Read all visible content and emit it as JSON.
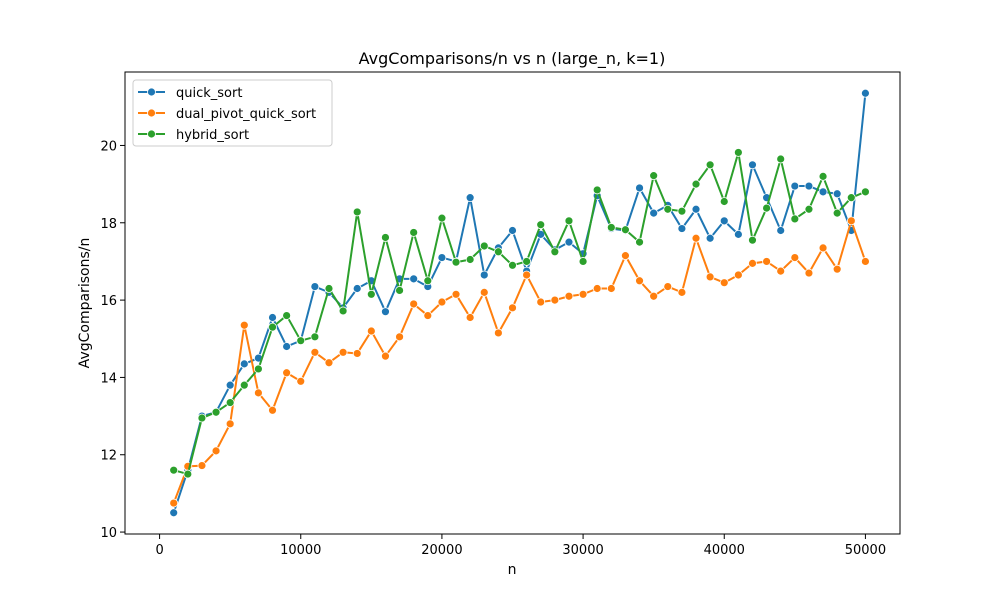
{
  "chart_data": {
    "type": "line",
    "title": "AvgComparisons/n vs n (large_n, k=1)",
    "xlabel": "n",
    "ylabel": "AvgComparisons/n",
    "xlim": [
      -2450,
      52450
    ],
    "ylim": [
      9.95,
      21.9
    ],
    "xticks": [
      0,
      10000,
      20000,
      30000,
      40000,
      50000
    ],
    "yticks": [
      10,
      12,
      14,
      16,
      18,
      20
    ],
    "grid": false,
    "legend_position": "top-left",
    "x": [
      1000,
      2000,
      3000,
      4000,
      5000,
      6000,
      7000,
      8000,
      9000,
      10000,
      11000,
      12000,
      13000,
      14000,
      15000,
      16000,
      17000,
      18000,
      19000,
      20000,
      21000,
      22000,
      23000,
      24000,
      25000,
      26000,
      27000,
      28000,
      29000,
      30000,
      31000,
      32000,
      33000,
      34000,
      35000,
      36000,
      37000,
      38000,
      39000,
      40000,
      41000,
      42000,
      43000,
      44000,
      45000,
      46000,
      47000,
      48000,
      49000,
      50000
    ],
    "series": [
      {
        "name": "quick_sort",
        "color": "#1f77b4",
        "values": [
          10.5,
          11.6,
          13.0,
          13.1,
          13.8,
          14.35,
          14.5,
          15.55,
          14.8,
          14.95,
          16.35,
          16.2,
          15.8,
          16.3,
          16.5,
          15.7,
          16.55,
          16.55,
          16.35,
          17.1,
          17.0,
          18.65,
          16.65,
          17.35,
          17.8,
          16.75,
          17.7,
          17.3,
          17.5,
          17.2,
          18.7,
          17.85,
          17.8,
          18.9,
          18.25,
          18.45,
          17.85,
          18.35,
          17.6,
          18.05,
          17.7,
          19.5,
          18.65,
          17.8,
          18.95,
          18.95,
          18.8,
          18.75,
          17.8,
          21.35
        ]
      },
      {
        "name": "dual_pivot_quick_sort",
        "color": "#ff7f0e",
        "values": [
          10.75,
          11.7,
          11.72,
          12.1,
          12.8,
          15.35,
          13.6,
          13.15,
          14.12,
          13.9,
          14.65,
          14.38,
          14.65,
          14.62,
          15.2,
          14.55,
          15.05,
          15.9,
          15.6,
          15.95,
          16.15,
          15.55,
          16.2,
          15.15,
          15.8,
          16.65,
          15.95,
          16.0,
          16.1,
          16.15,
          16.3,
          16.3,
          17.15,
          16.5,
          16.1,
          16.35,
          16.2,
          17.6,
          16.6,
          16.45,
          16.65,
          16.95,
          17.0,
          16.75,
          17.1,
          16.7,
          17.35,
          16.8,
          18.05,
          17.0
        ]
      },
      {
        "name": "hybrid_sort",
        "color": "#2ca02c",
        "values": [
          11.6,
          11.5,
          12.95,
          13.1,
          13.35,
          13.8,
          14.22,
          15.3,
          15.6,
          14.95,
          15.05,
          16.3,
          15.72,
          18.28,
          16.15,
          17.62,
          16.25,
          17.75,
          16.5,
          18.12,
          16.98,
          17.05,
          17.4,
          17.25,
          16.9,
          17.0,
          17.95,
          17.25,
          18.05,
          17.0,
          18.85,
          17.88,
          17.82,
          17.5,
          19.22,
          18.35,
          18.3,
          19.0,
          19.5,
          18.55,
          19.82,
          17.55,
          18.38,
          19.65,
          18.1,
          18.35,
          19.2,
          18.25,
          18.65,
          18.8
        ]
      }
    ]
  }
}
